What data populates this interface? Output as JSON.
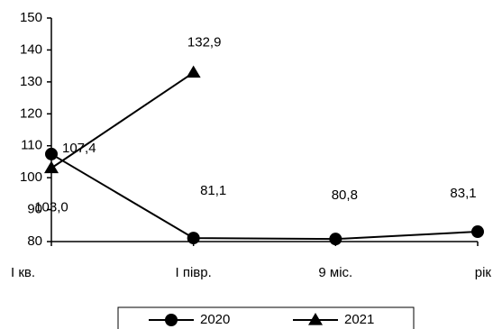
{
  "chart_data": {
    "type": "line",
    "categories": [
      "І кв.",
      "І півр.",
      "9 міс.",
      "рік"
    ],
    "series": [
      {
        "name": "2020",
        "color": "#000000",
        "marker": "circle",
        "values": [
          107.4,
          81.1,
          80.8,
          83.1
        ],
        "value_labels": [
          "107,4",
          "81,1",
          "80,8",
          "83,1"
        ]
      },
      {
        "name": "2021",
        "color": "#000000",
        "marker": "triangle",
        "values": [
          103.0,
          132.9,
          null,
          null
        ],
        "value_labels": [
          "103,0",
          "132,9",
          null,
          null
        ]
      }
    ],
    "ylim": [
      80,
      150
    ],
    "yticks": [
      80,
      90,
      100,
      110,
      120,
      130,
      140,
      150
    ],
    "grid": false,
    "legend": "bottom"
  }
}
